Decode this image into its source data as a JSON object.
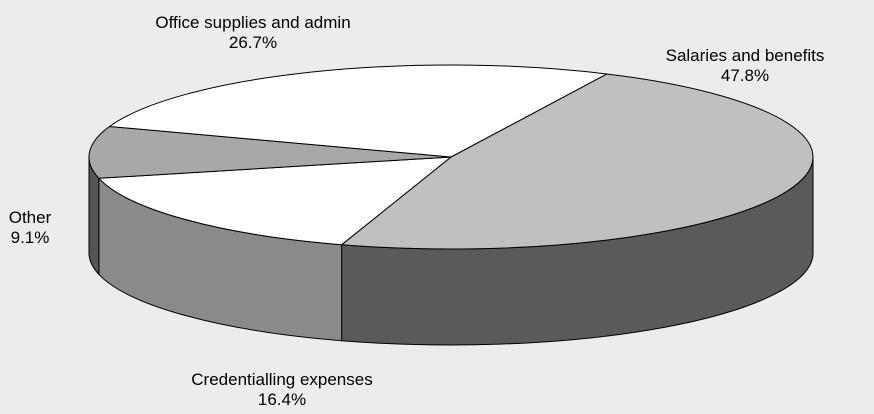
{
  "chart_data": {
    "type": "pie",
    "title": "",
    "slices": [
      {
        "label": "Salaries and benefits",
        "pct_text": "47.8%",
        "value": 47.8,
        "color": "#c0c0c0"
      },
      {
        "label": "Credentialling expenses",
        "pct_text": "16.4%",
        "value": 16.4,
        "color": "#ffffff"
      },
      {
        "label": "Other",
        "pct_text": "9.1%",
        "value": 9.1,
        "color": "#a8a8a8"
      },
      {
        "label": "Office supplies and admin",
        "pct_text": "26.7%",
        "value": 26.7,
        "color": "#ffffff"
      }
    ],
    "three_d": true,
    "background": "#ececec",
    "outline": "#000000"
  }
}
